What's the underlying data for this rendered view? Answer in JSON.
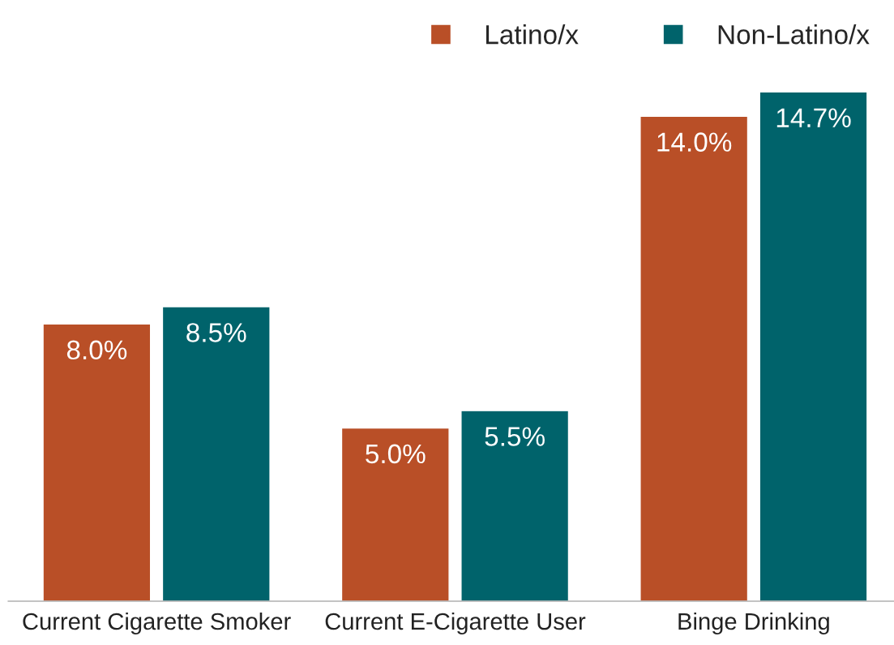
{
  "chart_data": {
    "type": "bar",
    "categories": [
      "Current Cigarette Smoker",
      "Current E-Cigarette User",
      "Binge Drinking"
    ],
    "series": [
      {
        "name": "Latino/x",
        "color": "#b94f27",
        "values": [
          8.0,
          5.0,
          14.0
        ],
        "value_labels": [
          "8.0%",
          "5.0%",
          "14.0%"
        ]
      },
      {
        "name": "Non-Latino/x",
        "color": "#00636b",
        "values": [
          8.5,
          5.5,
          14.7
        ],
        "value_labels": [
          "8.5%",
          "5.5%",
          "14.7%"
        ]
      }
    ],
    "legend": "top right",
    "grid": false
  }
}
